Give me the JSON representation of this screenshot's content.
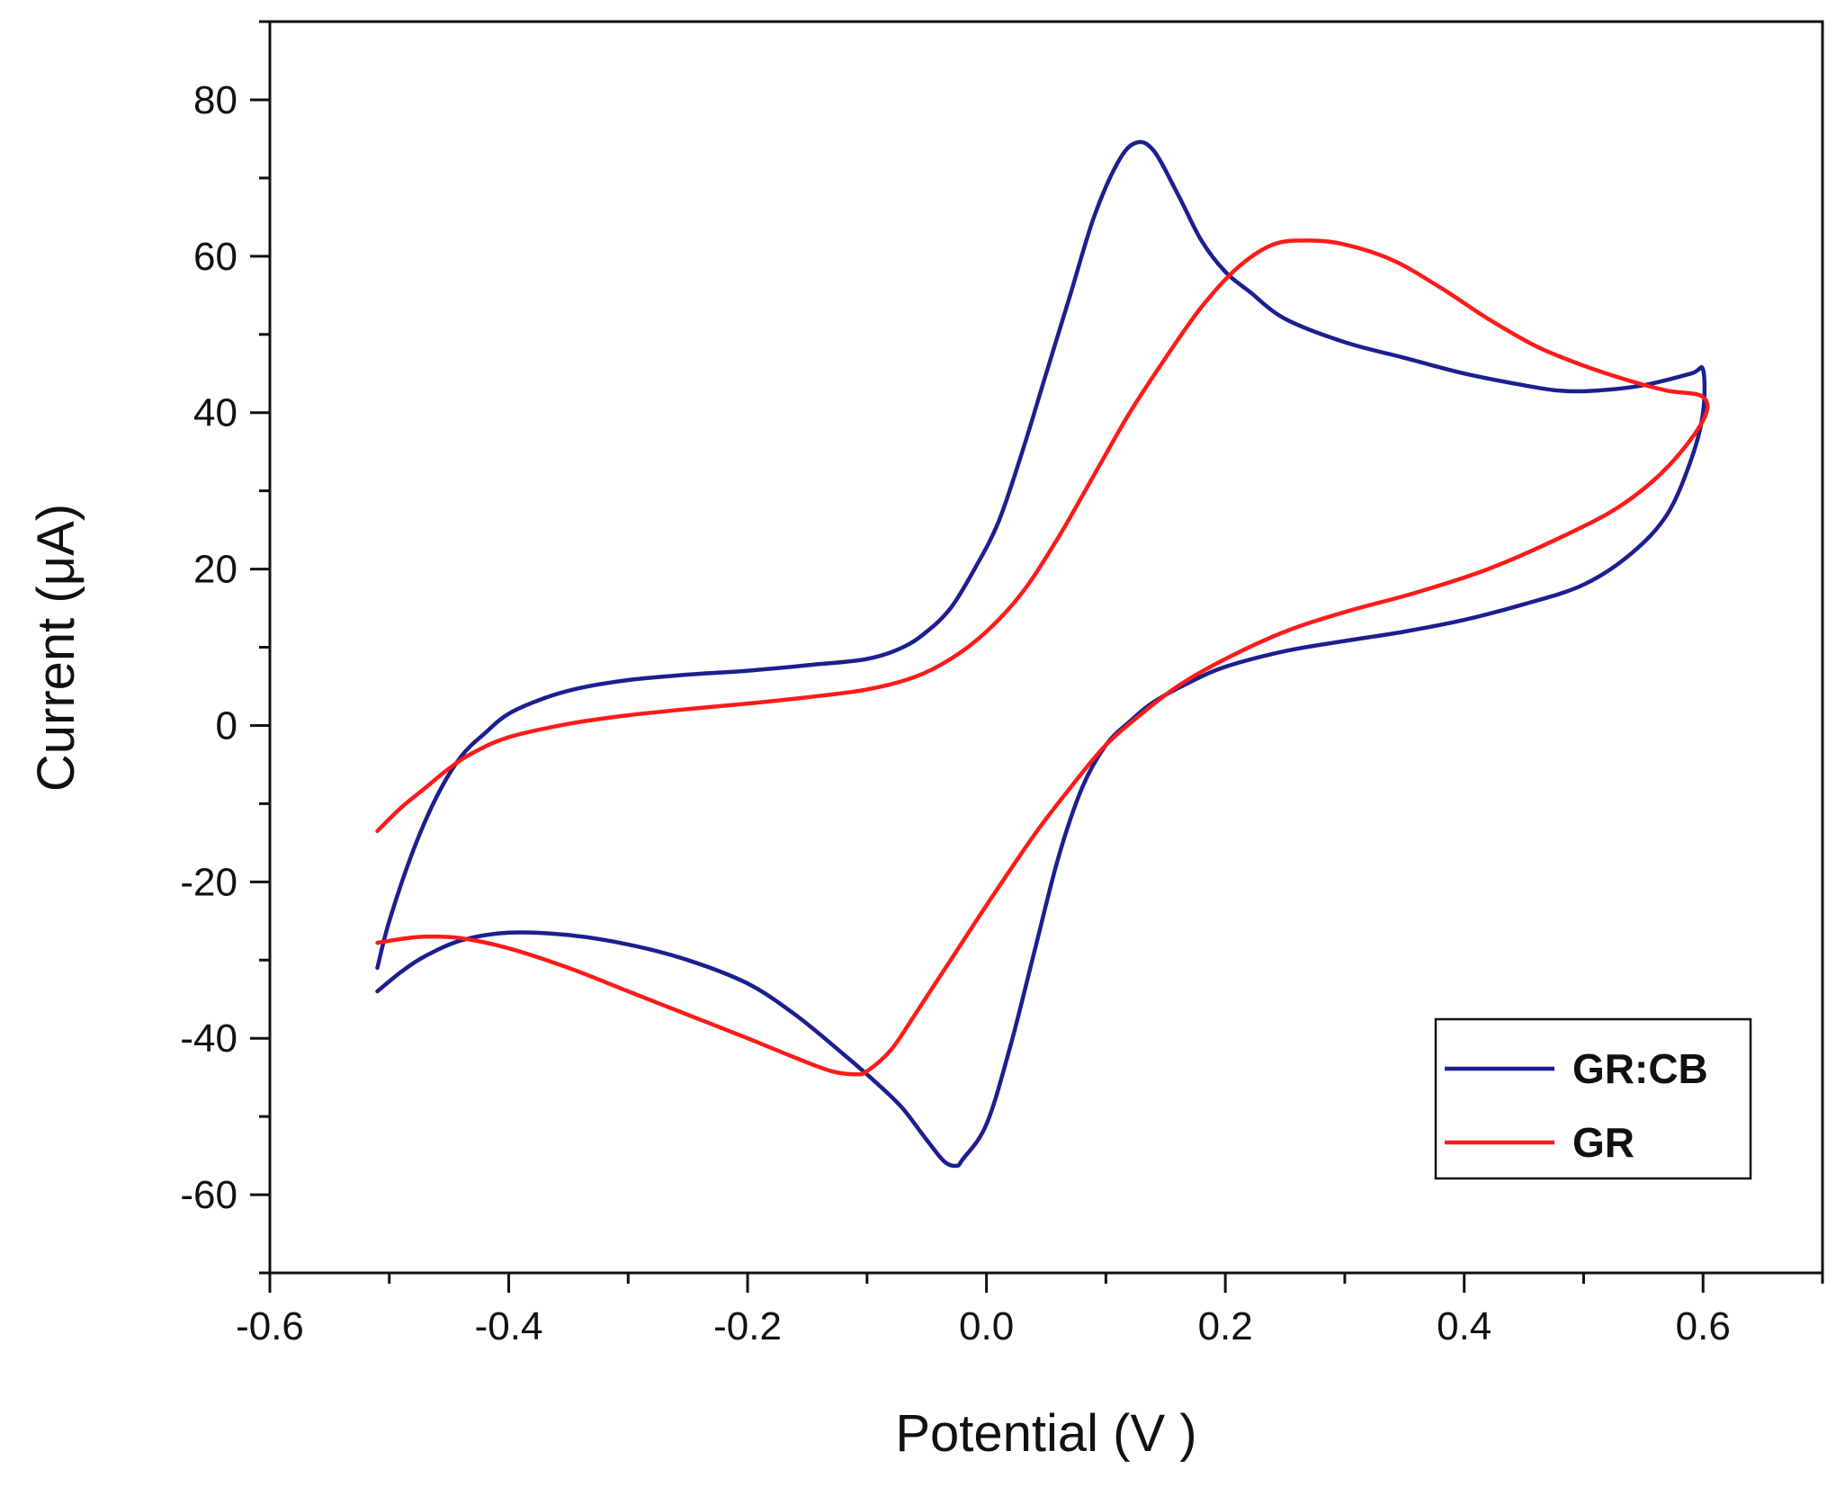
{
  "chart_data": {
    "type": "line",
    "title": "",
    "xlabel": "Potential (V )",
    "ylabel": "Current (μA)",
    "xlim": [
      -0.6,
      0.7
    ],
    "ylim": [
      -70,
      90
    ],
    "xticks": [
      -0.6,
      -0.4,
      -0.2,
      0.0,
      0.2,
      0.4,
      0.6
    ],
    "xtick_labels": [
      "-0.6",
      "-0.4",
      "-0.2",
      "0.0",
      "0.2",
      "0.4",
      "0.6"
    ],
    "xminor_step": 0.1,
    "yticks": [
      -60,
      -40,
      -20,
      0,
      20,
      40,
      60,
      80
    ],
    "ytick_labels": [
      "-60",
      "-40",
      "-20",
      "0",
      "20",
      "40",
      "60",
      "80"
    ],
    "yminor_step": 10,
    "grid": false,
    "legend_position": "bottom-right",
    "series": [
      {
        "name": "GR:CB",
        "color": "#1b1f8f",
        "points": [
          [
            -0.51,
            -31
          ],
          [
            -0.5,
            -25
          ],
          [
            -0.48,
            -16
          ],
          [
            -0.46,
            -9
          ],
          [
            -0.44,
            -4
          ],
          [
            -0.42,
            -1
          ],
          [
            -0.4,
            1.5
          ],
          [
            -0.37,
            3.5
          ],
          [
            -0.34,
            4.8
          ],
          [
            -0.3,
            5.8
          ],
          [
            -0.25,
            6.5
          ],
          [
            -0.2,
            7.0
          ],
          [
            -0.15,
            7.7
          ],
          [
            -0.1,
            8.5
          ],
          [
            -0.07,
            10
          ],
          [
            -0.05,
            12
          ],
          [
            -0.03,
            15
          ],
          [
            -0.01,
            20
          ],
          [
            0.01,
            26
          ],
          [
            0.03,
            35
          ],
          [
            0.05,
            45
          ],
          [
            0.07,
            55
          ],
          [
            0.09,
            65
          ],
          [
            0.11,
            72
          ],
          [
            0.125,
            74.5
          ],
          [
            0.14,
            73.5
          ],
          [
            0.16,
            68
          ],
          [
            0.18,
            62
          ],
          [
            0.2,
            58
          ],
          [
            0.22,
            55.5
          ],
          [
            0.25,
            52
          ],
          [
            0.3,
            49
          ],
          [
            0.35,
            47
          ],
          [
            0.4,
            45
          ],
          [
            0.45,
            43.5
          ],
          [
            0.48,
            42.8
          ],
          [
            0.51,
            42.8
          ],
          [
            0.55,
            43.5
          ],
          [
            0.59,
            45
          ],
          [
            0.6,
            45.5
          ],
          [
            0.6,
            40
          ],
          [
            0.59,
            34
          ],
          [
            0.57,
            27
          ],
          [
            0.54,
            22
          ],
          [
            0.5,
            18
          ],
          [
            0.45,
            15.5
          ],
          [
            0.4,
            13.5
          ],
          [
            0.35,
            12
          ],
          [
            0.3,
            10.8
          ],
          [
            0.25,
            9.5
          ],
          [
            0.2,
            7.5
          ],
          [
            0.17,
            5.5
          ],
          [
            0.14,
            3
          ],
          [
            0.12,
            0.5
          ],
          [
            0.1,
            -2.5
          ],
          [
            0.08,
            -8
          ],
          [
            0.06,
            -17
          ],
          [
            0.04,
            -29
          ],
          [
            0.02,
            -41
          ],
          [
            0.0,
            -51
          ],
          [
            -0.02,
            -55.5
          ],
          [
            -0.025,
            -56.3
          ],
          [
            -0.035,
            -55.8
          ],
          [
            -0.05,
            -53
          ],
          [
            -0.07,
            -49
          ],
          [
            -0.09,
            -46
          ],
          [
            -0.12,
            -42
          ],
          [
            -0.16,
            -37
          ],
          [
            -0.2,
            -33
          ],
          [
            -0.25,
            -30
          ],
          [
            -0.3,
            -28
          ],
          [
            -0.35,
            -26.8
          ],
          [
            -0.4,
            -26.5
          ],
          [
            -0.44,
            -27.5
          ],
          [
            -0.47,
            -29.5
          ],
          [
            -0.49,
            -31.5
          ],
          [
            -0.51,
            -34
          ]
        ]
      },
      {
        "name": "GR",
        "color": "#ff1a1a",
        "points": [
          [
            -0.51,
            -13.5
          ],
          [
            -0.49,
            -10.5
          ],
          [
            -0.47,
            -8
          ],
          [
            -0.45,
            -5.5
          ],
          [
            -0.43,
            -3.5
          ],
          [
            -0.4,
            -1.5
          ],
          [
            -0.35,
            0.2
          ],
          [
            -0.3,
            1.3
          ],
          [
            -0.25,
            2.1
          ],
          [
            -0.2,
            2.8
          ],
          [
            -0.15,
            3.6
          ],
          [
            -0.1,
            4.6
          ],
          [
            -0.06,
            6.2
          ],
          [
            -0.03,
            8.5
          ],
          [
            0.0,
            12
          ],
          [
            0.03,
            17
          ],
          [
            0.06,
            24
          ],
          [
            0.09,
            32
          ],
          [
            0.12,
            40
          ],
          [
            0.15,
            47
          ],
          [
            0.18,
            53.5
          ],
          [
            0.21,
            58.5
          ],
          [
            0.24,
            61.5
          ],
          [
            0.27,
            62
          ],
          [
            0.3,
            61.5
          ],
          [
            0.34,
            59.5
          ],
          [
            0.38,
            56
          ],
          [
            0.42,
            52
          ],
          [
            0.46,
            48.5
          ],
          [
            0.5,
            46
          ],
          [
            0.54,
            44
          ],
          [
            0.57,
            42.8
          ],
          [
            0.6,
            42
          ],
          [
            0.6,
            39
          ],
          [
            0.57,
            33
          ],
          [
            0.53,
            28
          ],
          [
            0.48,
            24
          ],
          [
            0.42,
            20
          ],
          [
            0.36,
            17
          ],
          [
            0.3,
            14.5
          ],
          [
            0.25,
            12
          ],
          [
            0.2,
            8.5
          ],
          [
            0.16,
            5
          ],
          [
            0.13,
            1.5
          ],
          [
            0.1,
            -2.5
          ],
          [
            0.07,
            -8
          ],
          [
            0.04,
            -14
          ],
          [
            0.0,
            -23
          ],
          [
            -0.03,
            -30
          ],
          [
            -0.06,
            -37
          ],
          [
            -0.08,
            -41.5
          ],
          [
            -0.1,
            -44.2
          ],
          [
            -0.11,
            -44.6
          ],
          [
            -0.13,
            -44.2
          ],
          [
            -0.16,
            -42.5
          ],
          [
            -0.2,
            -40
          ],
          [
            -0.25,
            -37
          ],
          [
            -0.3,
            -34
          ],
          [
            -0.35,
            -31
          ],
          [
            -0.4,
            -28.5
          ],
          [
            -0.44,
            -27.2
          ],
          [
            -0.47,
            -27
          ],
          [
            -0.49,
            -27.3
          ],
          [
            -0.51,
            -27.8
          ]
        ]
      }
    ]
  }
}
